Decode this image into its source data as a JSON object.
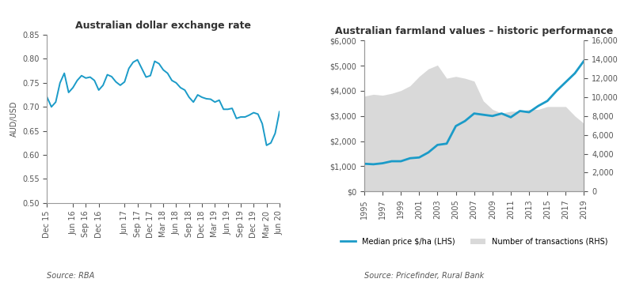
{
  "chart_data": [
    {
      "type": "line",
      "title": "Australian dollar exchange rate",
      "y_label": "AUD/USD",
      "source": "Source: RBA",
      "categories": [
        "Dec 15",
        null,
        null,
        null,
        null,
        null,
        "Jun 16",
        null,
        null,
        "Sep 16",
        null,
        null,
        "Dec 16",
        null,
        null,
        null,
        null,
        null,
        "Jun 17",
        null,
        null,
        "Sep 17",
        null,
        null,
        "Dec 17",
        null,
        null,
        "Mar 18",
        null,
        null,
        "Jun 18",
        null,
        null,
        "Sep 18",
        null,
        null,
        "Dec 18",
        null,
        null,
        "Mar 19",
        null,
        null,
        "Jun 19",
        null,
        null,
        "Sep 19",
        null,
        null,
        "Dec 19",
        null,
        null,
        "Mar 20",
        null,
        null,
        "Jun 20"
      ],
      "values": [
        0.72,
        0.7,
        0.71,
        0.75,
        0.77,
        0.73,
        0.74,
        0.755,
        0.765,
        0.76,
        0.762,
        0.755,
        0.735,
        0.745,
        0.767,
        0.763,
        0.752,
        0.745,
        0.752,
        0.78,
        0.793,
        0.798,
        0.78,
        0.762,
        0.765,
        0.795,
        0.79,
        0.777,
        0.77,
        0.755,
        0.75,
        0.74,
        0.735,
        0.72,
        0.71,
        0.725,
        0.72,
        0.717,
        0.716,
        0.71,
        0.714,
        0.695,
        0.695,
        0.697,
        0.676,
        0.679,
        0.679,
        0.683,
        0.688,
        0.685,
        0.665,
        0.62,
        0.625,
        0.645,
        0.69
      ],
      "color": "#1b9bc8",
      "ylim": [
        0.5,
        0.85
      ],
      "yticks": [
        {
          "value": 0.5,
          "label": "0.50"
        },
        {
          "value": 0.55,
          "label": "0.55"
        },
        {
          "value": 0.6,
          "label": "0.60"
        },
        {
          "value": 0.65,
          "label": "0.65"
        },
        {
          "value": 0.7,
          "label": "0.70"
        },
        {
          "value": 0.75,
          "label": "0.75"
        },
        {
          "value": 0.8,
          "label": "0.80"
        },
        {
          "value": 0.85,
          "label": "0.85"
        }
      ],
      "grid": false
    },
    {
      "type": "line",
      "title": "Australian farmland values – historic performance",
      "source": "Source: Pricefinder, Rural Bank",
      "x": [
        1995,
        1996,
        1997,
        1998,
        1999,
        2000,
        2001,
        2002,
        2003,
        2004,
        2005,
        2006,
        2007,
        2008,
        2009,
        2010,
        2011,
        2012,
        2013,
        2014,
        2015,
        2016,
        2017,
        2018,
        2019
      ],
      "series": [
        {
          "name": "Number of transactions (RHS)",
          "type": "area",
          "axis": "y2",
          "color": "#d9d9d9",
          "values": [
            10100,
            10300,
            10200,
            10400,
            10700,
            11200,
            12200,
            13000,
            13400,
            12000,
            12200,
            12000,
            11700,
            9600,
            8700,
            8300,
            8500,
            8500,
            8700,
            8700,
            9000,
            9000,
            9000,
            8000,
            7200
          ]
        },
        {
          "name": "Median price $/ha (LHS)",
          "type": "line",
          "color": "#1b9bc8",
          "values": [
            1100,
            1080,
            1120,
            1200,
            1200,
            1320,
            1350,
            1550,
            1850,
            1900,
            2600,
            2800,
            3100,
            3050,
            3000,
            3100,
            2950,
            3200,
            3150,
            3400,
            3600,
            4000,
            4350,
            4700,
            5200
          ]
        }
      ],
      "xlim": [
        1995,
        2019
      ],
      "xticks": [
        1995,
        1997,
        1999,
        2001,
        2003,
        2005,
        2007,
        2009,
        2011,
        2013,
        2015,
        2017,
        2019
      ],
      "ylim": [
        0,
        6000
      ],
      "yticks": [
        {
          "value": 0,
          "label": "$0"
        },
        {
          "value": 1000,
          "label": "$1,000"
        },
        {
          "value": 2000,
          "label": "$2,000"
        },
        {
          "value": 3000,
          "label": "$3,000"
        },
        {
          "value": 4000,
          "label": "$4,000"
        },
        {
          "value": 5000,
          "label": "$5,000"
        },
        {
          "value": 6000,
          "label": "$6,000"
        }
      ],
      "y2lim": [
        0,
        16000
      ],
      "y2ticks": [
        0,
        {
          "value": 2000,
          "label": "2,000"
        },
        {
          "value": 4000,
          "label": "4,000"
        },
        {
          "value": 6000,
          "label": "6,000"
        },
        {
          "value": 8000,
          "label": "8,000"
        },
        {
          "value": 10000,
          "label": "10,000"
        },
        {
          "value": 12000,
          "label": "12,000"
        },
        {
          "value": 14000,
          "label": "14,000"
        },
        {
          "value": 16000,
          "label": "16,000"
        }
      ],
      "legend": "bottom",
      "grid": false
    }
  ]
}
